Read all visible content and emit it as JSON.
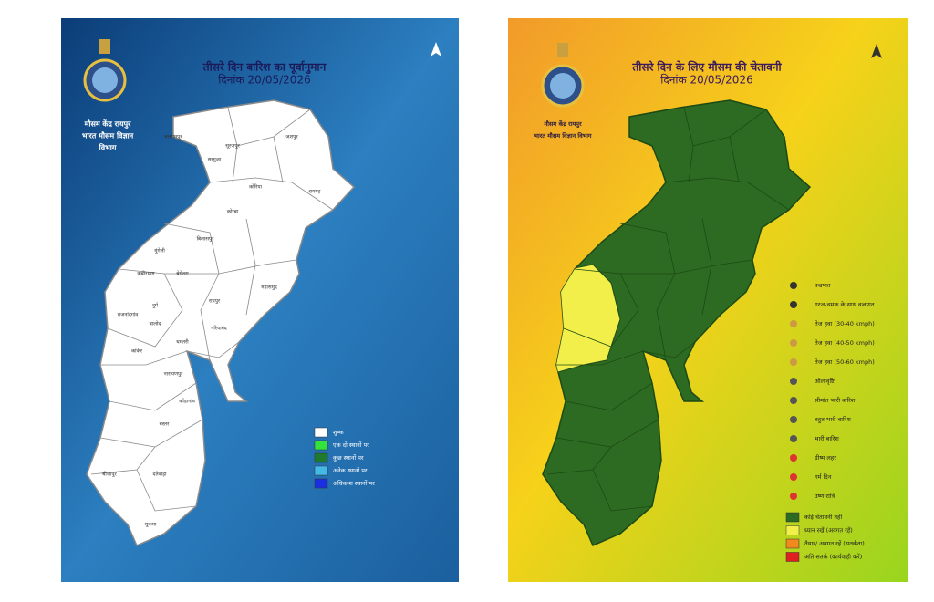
{
  "panels": [
    {
      "title": "तीसरे दिन बारिश का पूर्वानुमान",
      "date": "दिनांक 20/05/2026",
      "org": [
        "मौसम केंद्र रायपुर",
        "भारत मौसम विज्ञान",
        "विभाग"
      ],
      "map_color": "#ffffff",
      "border_color": "#8a8a8a",
      "districts": [
        "बलरामपुर",
        "सूरजपुर",
        "सरगुजा",
        "जशपुर",
        "कोरिया",
        "कोरबा",
        "रायगढ़",
        "बिलासपुर",
        "मुंगेली",
        "कबीरधाम",
        "बेमेतरा",
        "दुर्ग",
        "रायपुर",
        "महासमुंद",
        "राजनांदगांव",
        "बालोद",
        "धमतरी",
        "गरियाबंद",
        "कांकेर",
        "नारायणपुर",
        "कोंडागांव",
        "बस्तर",
        "बीजापुर",
        "दंतेवाड़ा",
        "सुकमा"
      ],
      "legend": [
        {
          "label": "शुष्क",
          "color": "#ffffff"
        },
        {
          "label": "एक दो स्थानों पर",
          "color": "#33e23a"
        },
        {
          "label": "कुछ स्थानों पर",
          "color": "#1f7a2c"
        },
        {
          "label": "अनेक स्थानों पर",
          "color": "#45b9e6"
        },
        {
          "label": "अधिकांश स्थानों पर",
          "color": "#1a2fe0"
        }
      ]
    },
    {
      "title": "तीसरे दिन के लिए मौसम की चेतावनी",
      "date": "दिनांक 20/05/2026",
      "org": [
        "मौसम केंद्र रायपुर",
        "भारत मौसम विज्ञान विभाग"
      ],
      "map_color": "#2e6b22",
      "border_color": "#1c4a15",
      "alert_color": "#f2ee4a",
      "icons": [
        "वज्रपात",
        "गरज-चमक के साथ वज्रपात",
        "तेज हवा (30-40 kmph)",
        "तेज हवा (40-50 kmph)",
        "तेज हवा (50-60 kmph)",
        "ओलावृष्टि",
        "सीमांत भारी बारिश",
        "बहुत भारी बारिश",
        "भारी बारिश",
        "ग्रीष्म लहर",
        "गर्म दिन",
        "उष्ण रात्रि"
      ],
      "legend": [
        {
          "label": "कोई चेतावनी नहीं",
          "color": "#2e6b22"
        },
        {
          "label": "ध्यान रखें (अवगत रहें)",
          "color": "#f2ee4a"
        },
        {
          "label": "तैयार/ अवगत रहें (सतर्कता)",
          "color": "#f08a1c"
        },
        {
          "label": "अति सतर्क (कार्यवाही करें)",
          "color": "#e02020"
        }
      ]
    }
  ]
}
